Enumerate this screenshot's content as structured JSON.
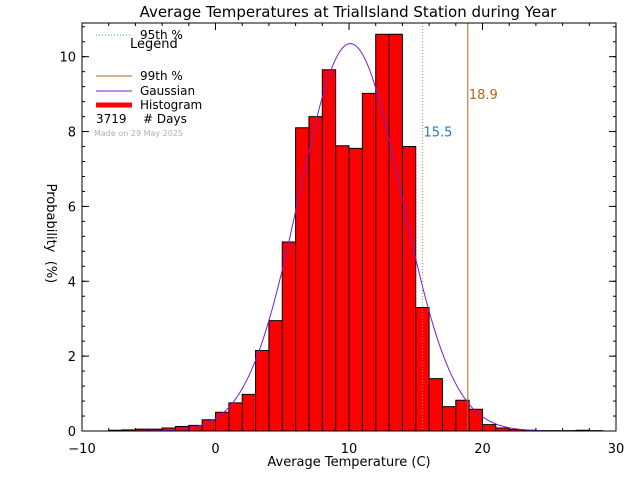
{
  "chart_data": {
    "type": "bar",
    "title": "Average Temperatures at TrialIsland Station during Year",
    "xlabel": "Average Temperature (C)",
    "ylabel": "Probability",
    "ylabel_unit": "(%)",
    "xlim": [
      -10,
      30
    ],
    "ylim": [
      0,
      10.9
    ],
    "xticks": [
      -10,
      0,
      10,
      20,
      30
    ],
    "xtick_labels": [
      "−10",
      "0",
      "10",
      "20",
      "30"
    ],
    "yticks": [
      0,
      2,
      4,
      6,
      8,
      10
    ],
    "bin_width": 1,
    "bins": [
      {
        "x0": -8,
        "v": 0.02
      },
      {
        "x0": -7,
        "v": 0.03
      },
      {
        "x0": -6,
        "v": 0.05
      },
      {
        "x0": -5,
        "v": 0.05
      },
      {
        "x0": -4,
        "v": 0.08
      },
      {
        "x0": -3,
        "v": 0.12
      },
      {
        "x0": -2,
        "v": 0.15
      },
      {
        "x0": -1,
        "v": 0.3
      },
      {
        "x0": 0,
        "v": 0.5
      },
      {
        "x0": 1,
        "v": 0.75
      },
      {
        "x0": 2,
        "v": 0.98
      },
      {
        "x0": 3,
        "v": 2.15
      },
      {
        "x0": 4,
        "v": 2.95
      },
      {
        "x0": 5,
        "v": 5.05
      },
      {
        "x0": 6,
        "v": 8.1
      },
      {
        "x0": 7,
        "v": 8.4
      },
      {
        "x0": 8,
        "v": 9.65
      },
      {
        "x0": 9,
        "v": 7.62
      },
      {
        "x0": 10,
        "v": 7.55
      },
      {
        "x0": 11,
        "v": 9.02
      },
      {
        "x0": 12,
        "v": 10.6
      },
      {
        "x0": 13,
        "v": 10.6
      },
      {
        "x0": 14,
        "v": 7.6
      },
      {
        "x0": 15,
        "v": 3.3
      },
      {
        "x0": 16,
        "v": 1.4
      },
      {
        "x0": 17,
        "v": 0.65
      },
      {
        "x0": 18,
        "v": 0.82
      },
      {
        "x0": 19,
        "v": 0.58
      },
      {
        "x0": 20,
        "v": 0.17
      },
      {
        "x0": 21,
        "v": 0.08
      },
      {
        "x0": 22,
        "v": 0.04
      },
      {
        "x0": 23,
        "v": 0.02
      },
      {
        "x0": 24,
        "v": 0.01
      },
      {
        "x0": 25,
        "v": 0.01
      },
      {
        "x0": 26,
        "v": 0.01
      },
      {
        "x0": 27,
        "v": 0.02
      },
      {
        "x0": 28,
        "v": 0.01
      }
    ],
    "gaussian": {
      "mean": 10.1,
      "sigma": 3.85,
      "peak": 10.35
    },
    "percentile_lines": [
      {
        "name": "95th %",
        "value": 15.5,
        "label": "15.5",
        "style": "dotted",
        "color": "#e07b3a",
        "label_color": "#1f77d4",
        "label_y": 8.0
      },
      {
        "name": "99th %",
        "value": 18.9,
        "label": "18.9",
        "style": "solid",
        "color": "#b5651d",
        "label_color": "#b5651d",
        "label_y": 9.0
      }
    ],
    "legend": {
      "title": "Legend",
      "items": [
        {
          "label": "95th %",
          "style": "dotted",
          "color": "#1a9fbf"
        },
        {
          "label": "99th %",
          "style": "solid",
          "color": "#b5651d"
        },
        {
          "label": "Gaussian",
          "style": "solid",
          "color": "#7a1fd1"
        },
        {
          "label": "Histogram",
          "style": "thick",
          "color": "#ff0000"
        }
      ],
      "count": "3719",
      "count_label": "# Days",
      "credit": "Made on 29 May 2025",
      "placement": "top-left"
    },
    "colors": {
      "histogram_fill": "#ff0000",
      "histogram_edge": "#000000",
      "gaussian": "#7a1fd1"
    }
  }
}
